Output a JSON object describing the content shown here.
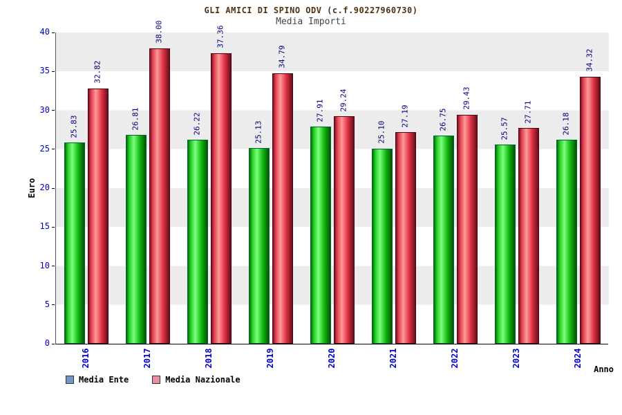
{
  "title": "GLI AMICI DI SPINO ODV (c.f.90227960730)",
  "subtitle": "Media Importi",
  "chart_data": {
    "type": "bar",
    "categories": [
      "2016",
      "2017",
      "2018",
      "2019",
      "2020",
      "2021",
      "2022",
      "2023",
      "2024"
    ],
    "series": [
      {
        "name": "Media Ente",
        "color": "#12b912",
        "values": [
          25.83,
          26.81,
          26.22,
          25.13,
          27.91,
          25.1,
          26.75,
          25.57,
          26.18
        ]
      },
      {
        "name": "Media Nazionale",
        "color": "#e03044",
        "values": [
          32.82,
          38.0,
          37.36,
          34.79,
          29.24,
          27.19,
          29.43,
          27.71,
          34.32
        ]
      }
    ],
    "xlabel": "Anno",
    "ylabel": "Euro",
    "ylim": [
      0,
      40
    ],
    "ytick_interval": 5,
    "grid": "horizontal-bands",
    "legend_position": "bottom-left",
    "value_labels": "rotated-90-above-bars"
  },
  "legend": {
    "items": [
      {
        "label": "Media Ente",
        "swatch_color": "#7296c8"
      },
      {
        "label": "Media Nazionale",
        "swatch_color": "#e890a4"
      }
    ]
  },
  "colors": {
    "tick_labels": "#0000cc",
    "value_labels": "#000080",
    "title": "#503014",
    "subtitle": "#444444",
    "axis": "#000000",
    "band_gray": "#ececec",
    "band_white": "#ffffff"
  }
}
